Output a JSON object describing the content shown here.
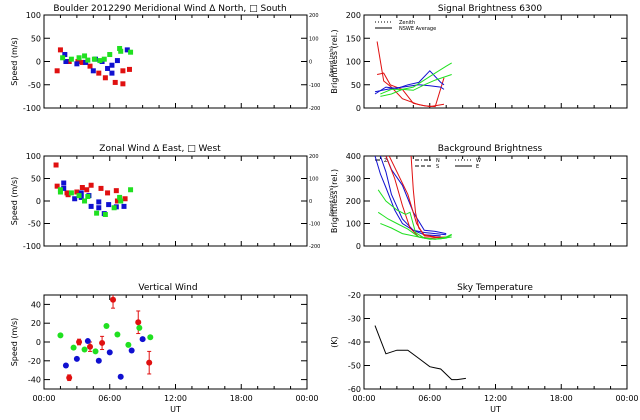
{
  "colors": {
    "red": "#e01010",
    "blue": "#1010d0",
    "green": "#20e020",
    "black": "#000000"
  },
  "chart_data": [
    {
      "id": "meridional",
      "type": "scatter",
      "title": "Boulder   2012290     Meridional Wind   Δ North, □ South",
      "ylabel": "Speed (m/s)",
      "y2label": "Speed (m/s)",
      "xlim": [
        0,
        24
      ],
      "ylim": [
        -100,
        100
      ],
      "y2lim": [
        -200,
        200
      ],
      "yticks": [
        -100,
        -50,
        0,
        50,
        100
      ],
      "y2ticks": [
        -200,
        -100,
        0,
        100,
        200
      ],
      "series": [
        {
          "name": "red",
          "color": "red",
          "points": [
            [
              1.2,
              -20
            ],
            [
              1.5,
              25
            ],
            [
              2.3,
              0
            ],
            [
              3.1,
              0
            ],
            [
              3.5,
              -2
            ],
            [
              4.2,
              -10
            ],
            [
              5.0,
              -25
            ],
            [
              5.6,
              -35
            ],
            [
              6.5,
              -45
            ],
            [
              7.2,
              -48
            ],
            [
              7.2,
              -20
            ],
            [
              7.8,
              -17
            ]
          ]
        },
        {
          "name": "blue",
          "color": "blue",
          "points": [
            [
              1.9,
              15
            ],
            [
              2.0,
              0
            ],
            [
              3.0,
              -5
            ],
            [
              3.8,
              -2
            ],
            [
              4.7,
              5
            ],
            [
              4.5,
              -20
            ],
            [
              5.3,
              0
            ],
            [
              5.8,
              -15
            ],
            [
              6.2,
              -8
            ],
            [
              6.2,
              -25
            ],
            [
              6.7,
              2
            ],
            [
              7.6,
              25
            ]
          ]
        },
        {
          "name": "green",
          "color": "green",
          "points": [
            [
              1.7,
              8
            ],
            [
              2.5,
              5
            ],
            [
              3.2,
              8
            ],
            [
              3.7,
              12
            ],
            [
              4.0,
              3
            ],
            [
              4.6,
              5
            ],
            [
              5.1,
              2
            ],
            [
              5.5,
              5
            ],
            [
              6.0,
              15
            ],
            [
              6.9,
              28
            ],
            [
              7.0,
              22
            ],
            [
              7.9,
              20
            ]
          ]
        }
      ]
    },
    {
      "id": "signal",
      "type": "line",
      "title": "Signal Brightness      6300",
      "ylabel": "Brightness (rel.)",
      "xlim": [
        0,
        24
      ],
      "ylim": [
        0,
        200
      ],
      "yticks": [
        0,
        50,
        100,
        150,
        200
      ],
      "legend": [
        "Zenith",
        "NSWE Average"
      ],
      "series": [
        {
          "name": "red-1",
          "color": "red",
          "x": [
            1.2,
            1.8,
            2.5,
            3.5,
            5.0,
            6.0,
            7.3
          ],
          "y": [
            143,
            58,
            45,
            20,
            7,
            3,
            8
          ]
        },
        {
          "name": "red-2",
          "color": "red",
          "x": [
            1.2,
            1.8,
            2.4,
            3.5,
            4.5,
            5.5,
            6.5,
            7.3
          ],
          "y": [
            72,
            75,
            50,
            40,
            10,
            5,
            3,
            65
          ]
        },
        {
          "name": "blue-1",
          "color": "blue",
          "x": [
            1.0,
            2.0,
            3.0,
            4.0,
            5.0,
            6.0,
            7.0,
            7.3
          ],
          "y": [
            30,
            45,
            42,
            50,
            55,
            80,
            55,
            50
          ]
        },
        {
          "name": "blue-2",
          "color": "blue",
          "x": [
            1.0,
            2.5,
            3.5,
            5.0,
            6.0,
            7.0,
            7.3
          ],
          "y": [
            35,
            42,
            45,
            50,
            48,
            45,
            40
          ]
        },
        {
          "name": "green-1",
          "color": "green",
          "x": [
            1.5,
            2.5,
            3.5,
            4.5,
            5.5,
            6.5,
            7.5,
            8.0
          ],
          "y": [
            25,
            30,
            40,
            45,
            60,
            75,
            90,
            97
          ]
        },
        {
          "name": "green-2",
          "color": "green",
          "x": [
            1.5,
            2.5,
            3.5,
            4.5,
            5.5,
            6.5,
            7.5,
            8.0
          ],
          "y": [
            30,
            40,
            40,
            38,
            50,
            60,
            68,
            72
          ]
        }
      ]
    },
    {
      "id": "zonal",
      "type": "scatter",
      "title": "Zonal Wind      Δ East, □ West",
      "ylabel": "Speed (m/s)",
      "y2label": "Speed (m/s)",
      "xlim": [
        0,
        24
      ],
      "ylim": [
        -100,
        100
      ],
      "y2lim": [
        -200,
        200
      ],
      "yticks": [
        -100,
        -50,
        0,
        50,
        100
      ],
      "y2ticks": [
        -200,
        -100,
        0,
        100,
        200
      ],
      "series": [
        {
          "name": "red",
          "color": "red",
          "points": [
            [
              1.1,
              80
            ],
            [
              1.2,
              33
            ],
            [
              2.1,
              18
            ],
            [
              2.2,
              14
            ],
            [
              3.0,
              20
            ],
            [
              3.5,
              30
            ],
            [
              4.3,
              35
            ],
            [
              5.2,
              28
            ],
            [
              5.8,
              18
            ],
            [
              6.6,
              23
            ],
            [
              6.7,
              0
            ],
            [
              7.4,
              5
            ],
            [
              3.9,
              25
            ]
          ]
        },
        {
          "name": "blue",
          "color": "blue",
          "points": [
            [
              1.8,
              40
            ],
            [
              1.8,
              28
            ],
            [
              2.8,
              5
            ],
            [
              3.4,
              8
            ],
            [
              3.4,
              18
            ],
            [
              4.1,
              12
            ],
            [
              4.3,
              -12
            ],
            [
              5.0,
              -2
            ],
            [
              5.0,
              -15
            ],
            [
              5.5,
              -28
            ],
            [
              5.9,
              -8
            ],
            [
              6.6,
              -13
            ],
            [
              7.3,
              -12
            ]
          ]
        },
        {
          "name": "green",
          "color": "green",
          "points": [
            [
              1.5,
              20
            ],
            [
              1.5,
              25
            ],
            [
              2.5,
              18
            ],
            [
              3.2,
              12
            ],
            [
              3.7,
              0
            ],
            [
              4.0,
              10
            ],
            [
              4.8,
              -27
            ],
            [
              5.6,
              -30
            ],
            [
              6.4,
              -15
            ],
            [
              6.9,
              8
            ],
            [
              7.0,
              0
            ],
            [
              7.9,
              25
            ]
          ]
        }
      ]
    },
    {
      "id": "background",
      "type": "line",
      "title": "Background Brightness",
      "ylabel": "Brightness (rel.)",
      "xlim": [
        0,
        24
      ],
      "ylim": [
        0,
        400
      ],
      "yticks": [
        0,
        100,
        200,
        300,
        400
      ],
      "legend": [
        "Z",
        "N",
        "S",
        "W",
        "E"
      ],
      "series": [
        {
          "name": "blue-1",
          "color": "blue",
          "x": [
            1.0,
            1.5,
            2.0,
            2.8,
            3.5,
            4.5,
            5.5,
            6.5,
            7.5
          ],
          "y": [
            400,
            320,
            260,
            160,
            100,
            70,
            60,
            55,
            50
          ]
        },
        {
          "name": "blue-2",
          "color": "blue",
          "x": [
            1.5,
            2.0,
            2.5,
            3.5,
            4.5,
            5.5,
            7.0
          ],
          "y": [
            400,
            330,
            230,
            120,
            70,
            50,
            45
          ]
        },
        {
          "name": "blue-3",
          "color": "blue",
          "x": [
            2.0,
            2.5,
            3.5,
            4.5,
            5.5,
            6.5,
            7.5
          ],
          "y": [
            400,
            340,
            270,
            150,
            70,
            65,
            55
          ]
        },
        {
          "name": "red-1",
          "color": "red",
          "x": [
            2.0,
            2.8,
            3.5,
            4.2,
            5.0,
            6.0,
            7.5
          ],
          "y": [
            400,
            300,
            180,
            80,
            40,
            35,
            40
          ]
        },
        {
          "name": "red-2",
          "color": "red",
          "x": [
            4.3,
            4.5,
            4.7,
            5.0,
            5.5,
            6.5,
            7.5
          ],
          "y": [
            400,
            250,
            150,
            80,
            50,
            40,
            38
          ]
        },
        {
          "name": "red-3",
          "color": "red",
          "x": [
            2.3,
            3.0,
            4.0,
            4.8,
            5.5,
            7.0
          ],
          "y": [
            400,
            330,
            230,
            100,
            45,
            38
          ]
        },
        {
          "name": "green-1",
          "color": "green",
          "x": [
            1.3,
            2.0,
            3.0,
            3.8,
            4.2,
            4.7,
            5.5,
            6.5,
            7.5,
            8.0
          ],
          "y": [
            250,
            200,
            160,
            140,
            150,
            60,
            35,
            30,
            35,
            50
          ]
        },
        {
          "name": "green-2",
          "color": "green",
          "x": [
            1.3,
            2.2,
            3.0,
            4.0,
            5.0,
            6.0,
            7.0,
            8.0
          ],
          "y": [
            150,
            120,
            100,
            75,
            40,
            30,
            32,
            40
          ]
        },
        {
          "name": "green-3",
          "color": "green",
          "x": [
            1.5,
            2.5,
            3.5,
            4.5,
            5.5,
            6.5,
            7.5,
            8.0
          ],
          "y": [
            100,
            80,
            55,
            45,
            35,
            30,
            40,
            52
          ]
        }
      ]
    },
    {
      "id": "vertical",
      "type": "scatter",
      "title": "Vertical Wind",
      "ylabel": "Speed (m/s)",
      "xlabel": "UT",
      "xlim": [
        0,
        24
      ],
      "ylim": [
        -50,
        50
      ],
      "yticks": [
        -40,
        -20,
        0,
        20,
        40
      ],
      "xticks": [
        "00:00",
        "06:00",
        "12:00",
        "18:00",
        "00:00"
      ],
      "series": [
        {
          "name": "red",
          "color": "red",
          "points": [
            [
              2.3,
              -38,
              3
            ],
            [
              3.2,
              0,
              3
            ],
            [
              4.2,
              -5,
              5
            ],
            [
              5.3,
              -1,
              7
            ],
            [
              6.3,
              45,
              9
            ],
            [
              8.6,
              21,
              12
            ],
            [
              9.6,
              -22,
              12
            ]
          ]
        },
        {
          "name": "blue",
          "color": "blue",
          "points": [
            [
              2.0,
              -25,
              0
            ],
            [
              3.0,
              -18,
              0
            ],
            [
              4.0,
              1,
              0
            ],
            [
              5.0,
              -20,
              0
            ],
            [
              6.0,
              -11,
              0
            ],
            [
              7.0,
              -37,
              0
            ],
            [
              8.0,
              -9,
              0
            ],
            [
              9.0,
              3,
              0
            ]
          ]
        },
        {
          "name": "green",
          "color": "green",
          "points": [
            [
              1.5,
              7,
              0
            ],
            [
              2.7,
              -6,
              0
            ],
            [
              3.7,
              -8,
              0
            ],
            [
              4.7,
              -10,
              0
            ],
            [
              5.7,
              17,
              0
            ],
            [
              6.7,
              8,
              0
            ],
            [
              7.7,
              -3,
              0
            ],
            [
              8.7,
              15,
              0
            ],
            [
              9.7,
              5,
              0
            ]
          ]
        }
      ]
    },
    {
      "id": "skytemp",
      "type": "line",
      "title": "Sky Temperature",
      "ylabel": "(K)",
      "xlabel": "UT",
      "xlim": [
        0,
        24
      ],
      "ylim": [
        -60,
        -20
      ],
      "yticks": [
        -60,
        -50,
        -40,
        -30,
        -20
      ],
      "xticks": [
        "00:00",
        "06:00",
        "12:00",
        "18:00",
        "00:00"
      ],
      "series": [
        {
          "name": "temp",
          "color": "black",
          "x": [
            1.0,
            2.0,
            3.0,
            4.0,
            5.0,
            6.0,
            6.5,
            7.0,
            8.0,
            8.5,
            9.3
          ],
          "y": [
            -33,
            -45,
            -43.5,
            -43.5,
            -47,
            -50.5,
            -51,
            -51.5,
            -56,
            -56,
            -55.5
          ]
        }
      ]
    }
  ]
}
